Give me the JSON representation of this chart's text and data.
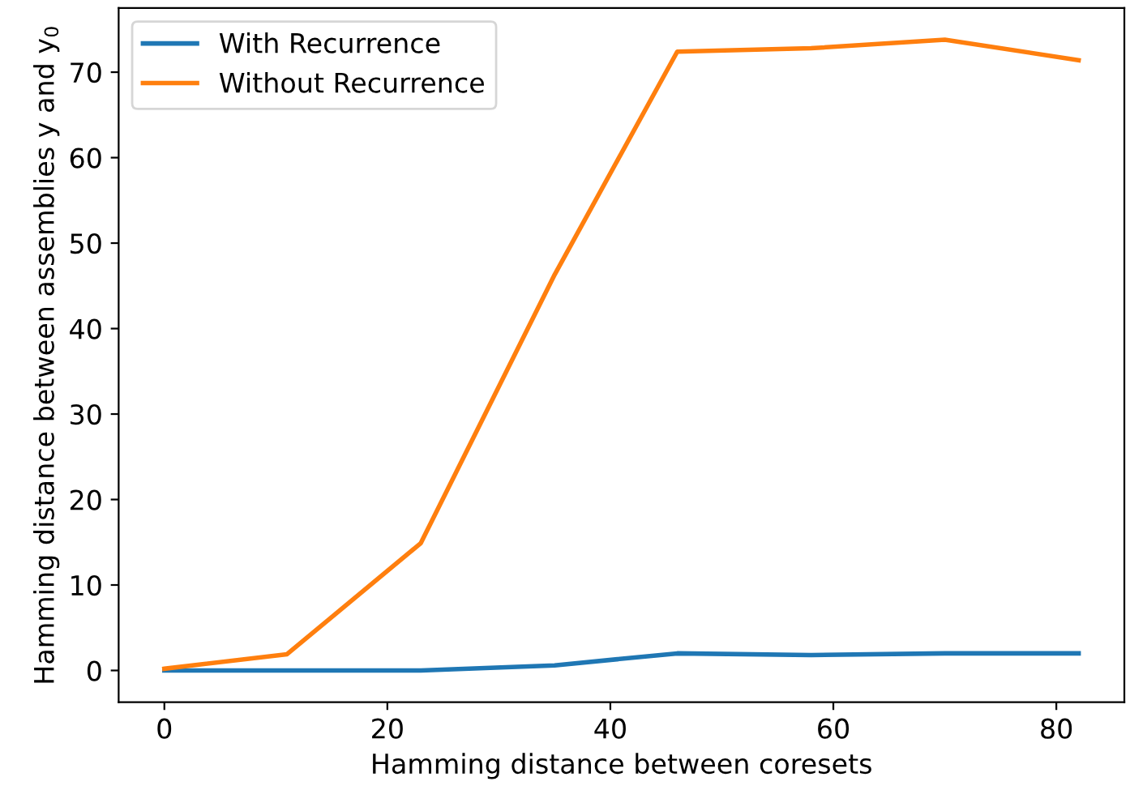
{
  "chart_data": {
    "type": "line",
    "xlabel": "Hamming distance between coresets",
    "ylabel": "Hamming distance between assemblies y and y$_{0}$",
    "x": [
      0,
      11,
      23,
      35,
      46,
      58,
      70,
      82
    ],
    "series": [
      {
        "name": "With Recurrence",
        "color": "#1f77b4",
        "values": [
          0,
          0,
          0,
          0.6,
          2.0,
          1.8,
          2.0,
          2.0
        ]
      },
      {
        "name": "Without Recurrence",
        "color": "#ff7f0e",
        "values": [
          0.2,
          1.9,
          14.9,
          46.3,
          72.4,
          72.8,
          73.8,
          71.4
        ]
      }
    ],
    "xlim": [
      -4.1,
      86.1
    ],
    "ylim": [
      -3.7,
      77.5
    ],
    "xticks": [
      0,
      20,
      40,
      60,
      80
    ],
    "yticks": [
      0,
      10,
      20,
      30,
      40,
      50,
      60,
      70
    ],
    "grid": false,
    "legend": "top left",
    "marker": "none",
    "line_style": "solid"
  }
}
